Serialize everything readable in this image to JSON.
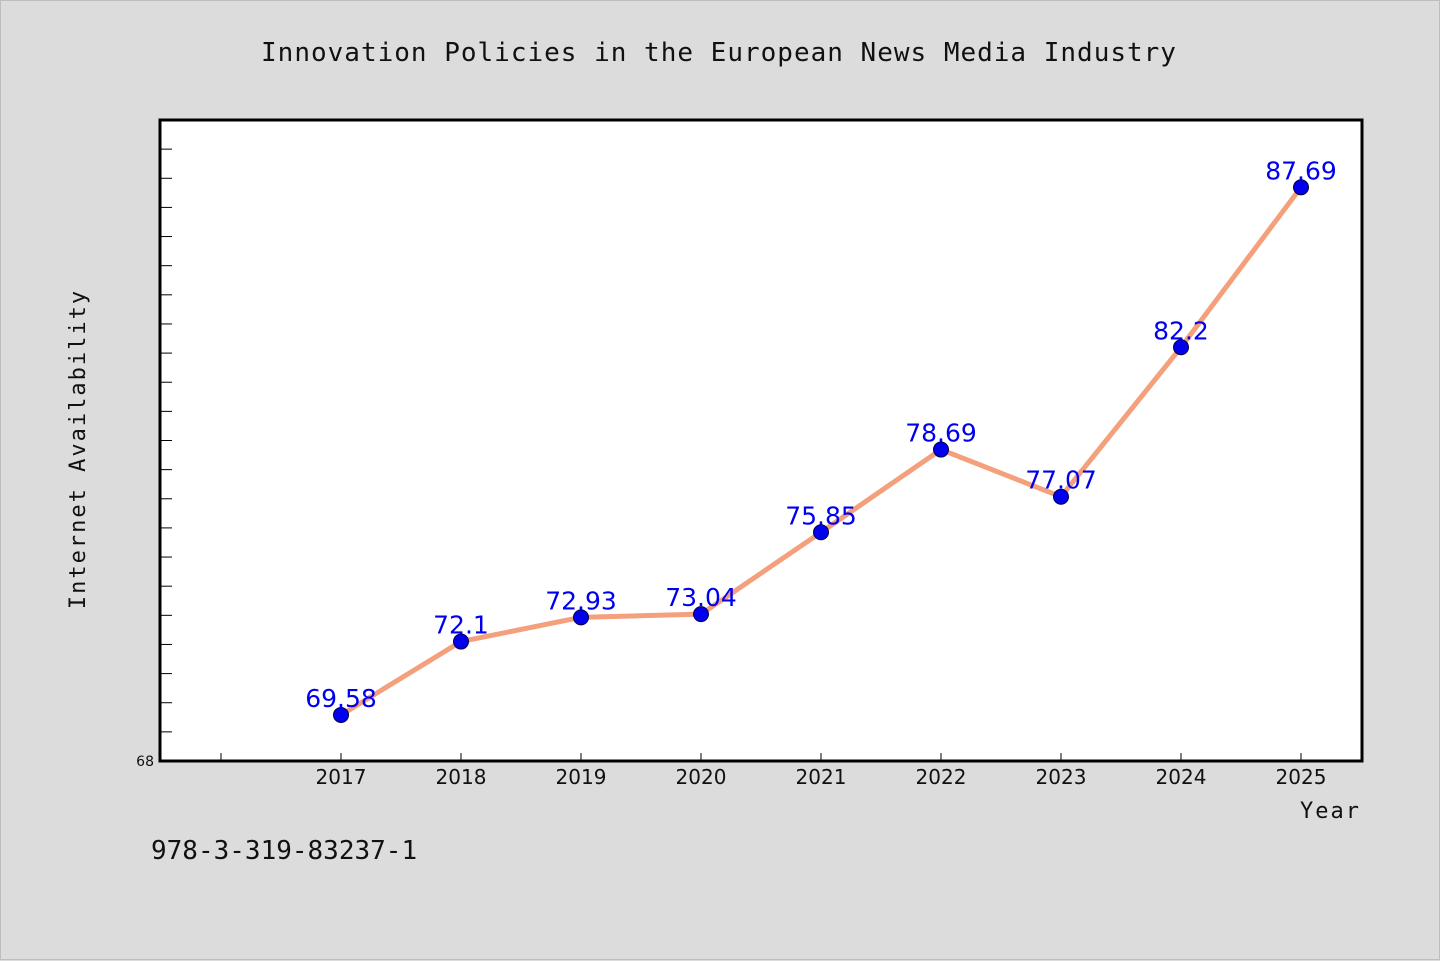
{
  "chart_data": {
    "type": "line",
    "title": "Innovation Policies in the European News Media Industry",
    "xlabel": "Year",
    "ylabel": "Internet Availability",
    "categories": [
      "2017",
      "2018",
      "2019",
      "2020",
      "2021",
      "2022",
      "2023",
      "2024",
      "2025"
    ],
    "series": [
      {
        "values": [
          69.58,
          72.1,
          72.93,
          73.04,
          75.85,
          78.69,
          77.07,
          82.2,
          87.69
        ],
        "line_color": "#f4a07c",
        "marker_color": "#0000ee"
      }
    ],
    "data_labels": [
      "69.58",
      "72.1",
      "72.93",
      "73.04",
      "75.85",
      "78.69",
      "77.07",
      "82.2",
      "87.69"
    ],
    "ylim": [
      68,
      90
    ],
    "y_tick_labels": [
      "68"
    ],
    "grid": false,
    "legend": "none"
  },
  "footer_text": "978-3-319-83237-1"
}
